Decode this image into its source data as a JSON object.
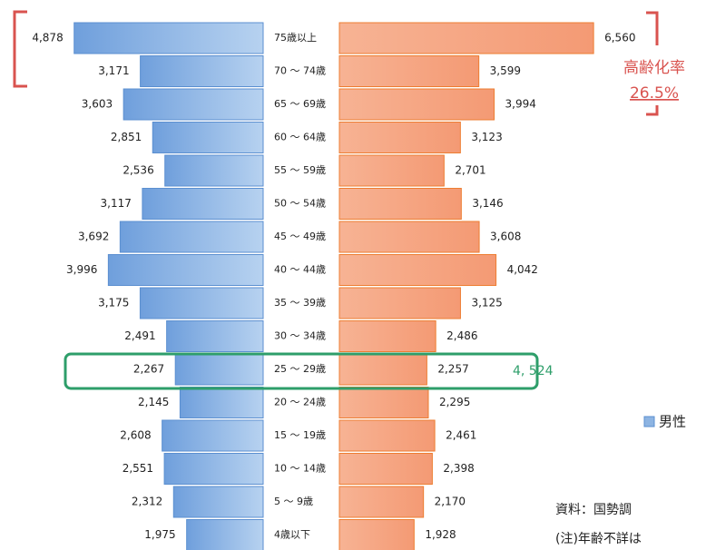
{
  "chart_data": {
    "type": "pyramid",
    "categories": [
      "75歳以上",
      "70 ～ 74歳",
      "65 ～ 69歳",
      "60 ～ 64歳",
      "55 ～ 59歳",
      "50 ～ 54歳",
      "45 ～ 49歳",
      "40 ～ 44歳",
      "35 ～ 39歳",
      "30 ～ 34歳",
      "25 ～ 29歳",
      "20 ～ 24歳",
      "15 ～ 19歳",
      "10 ～ 14歳",
      "5 ～ 9歳",
      "4歳以下"
    ],
    "series": [
      {
        "name": "男性",
        "color": "#8db4e2",
        "side": "left",
        "values": [
          4878,
          3171,
          3603,
          2851,
          2536,
          3117,
          3692,
          3996,
          3175,
          2491,
          2267,
          2145,
          2608,
          2551,
          2312,
          1975
        ],
        "value_labels": [
          "4,878",
          "3,171",
          "3,603",
          "2,851",
          "2,536",
          "3,117",
          "3,692",
          "3,996",
          "3,175",
          "2,491",
          "2,267",
          "2,145",
          "2,608",
          "2,551",
          "2,312",
          "1,975"
        ]
      },
      {
        "color": "#f4a582",
        "side": "right",
        "values": [
          6560,
          3599,
          3994,
          3123,
          2701,
          3146,
          3608,
          4042,
          3125,
          2486,
          2257,
          2295,
          2461,
          2398,
          2170,
          1928
        ],
        "value_labels": [
          "6,560",
          "3,599",
          "3,994",
          "3,123",
          "2,701",
          "3,146",
          "3,608",
          "4,042",
          "3,125",
          "2,486",
          "2,257",
          "2,295",
          "2,461",
          "2,398",
          "2,170",
          "1,928"
        ]
      }
    ],
    "annotations": {
      "aging_rate_label": "高齢化率",
      "aging_rate": "26.5%",
      "highlight_total": "4, 524"
    },
    "notes": [
      "資料：国勢調",
      "(注)年齢不詳は"
    ]
  }
}
